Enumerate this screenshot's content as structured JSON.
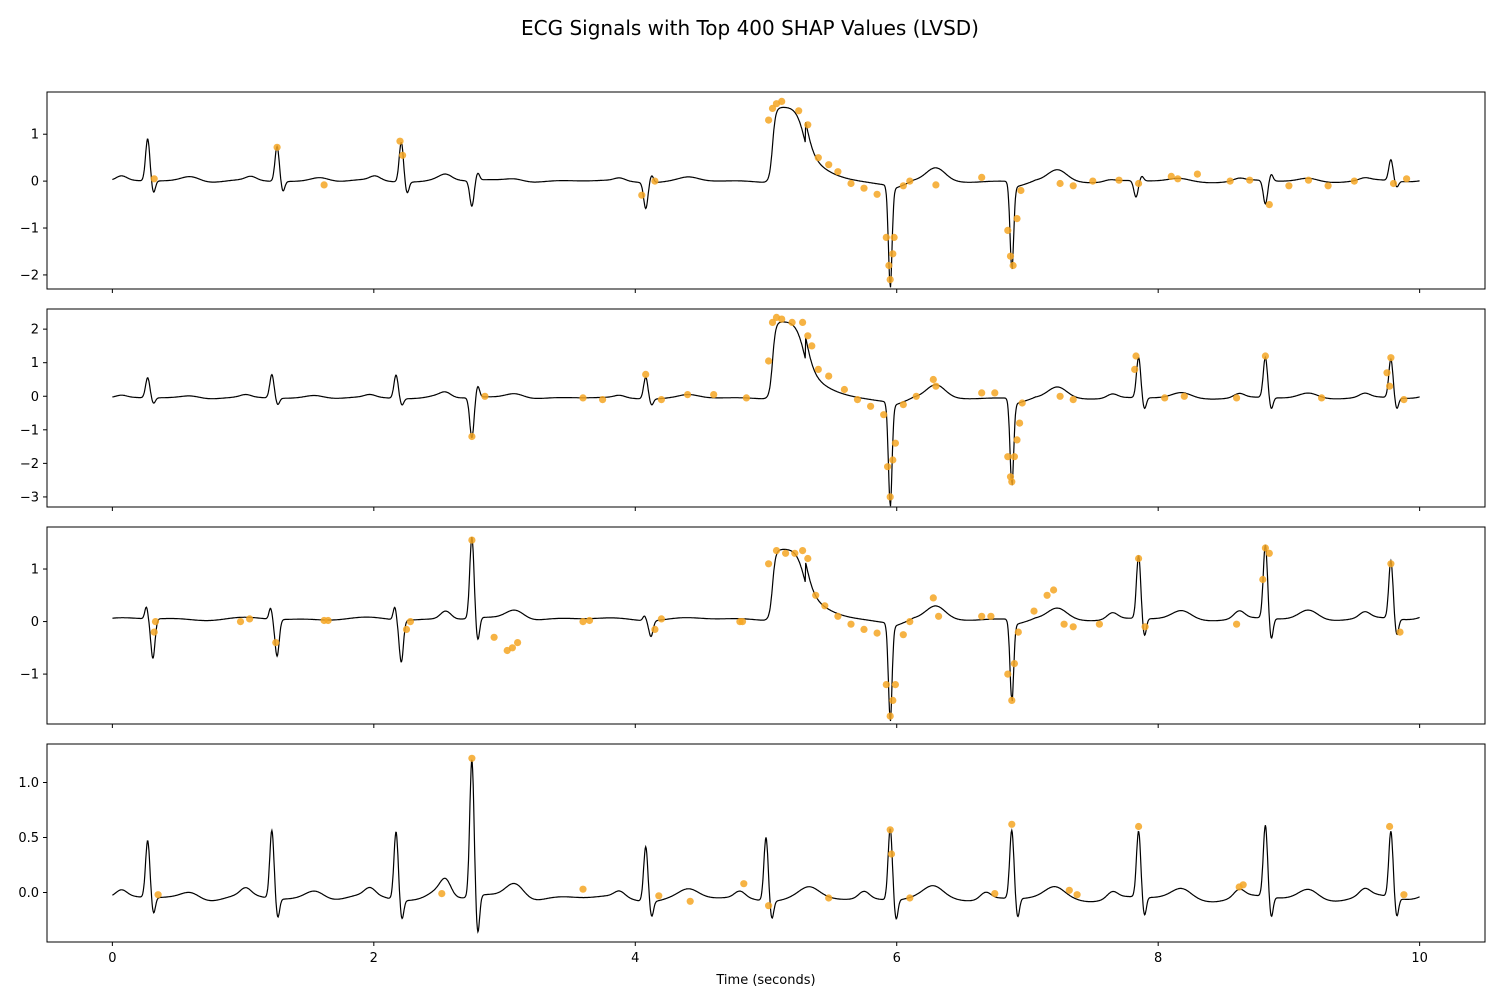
{
  "title": "ECG Signals with Top 400 SHAP Values (LVSD)",
  "chart_data": {
    "type": "line",
    "xlabel": "Time (seconds)",
    "xlim": [
      -0.5,
      10.5
    ],
    "xticks": [
      0,
      2,
      4,
      6,
      8,
      10
    ],
    "colors": {
      "signal": "#000000",
      "shap_points": "#f5a623"
    },
    "beat_shapes": {
      "narrow": {
        "q": -0.18,
        "r": 1.0,
        "s": -0.45,
        "t": 0.18
      },
      "wide": "broad monophasic complex with slow decay, deep negative spike and sharp negative rebound"
    },
    "panels": [
      {
        "ylim": [
          -2.3,
          1.9
        ],
        "yticks": [
          -2,
          -1,
          0,
          1
        ],
        "baseline": 0.0,
        "beats": [
          {
            "t": 0.27,
            "amp": 0.9,
            "kind": "narrow"
          },
          {
            "t": 1.26,
            "amp": 0.75,
            "kind": "narrow"
          },
          {
            "t": 2.21,
            "amp": 0.85,
            "kind": "narrow"
          },
          {
            "t": 2.75,
            "amp": -0.55,
            "kind": "narrow"
          },
          {
            "t": 4.08,
            "amp": -0.55,
            "kind": "narrow"
          },
          {
            "t": 5.05,
            "amp": 1.6,
            "kind": "wide"
          },
          {
            "t": 5.95,
            "amp": -2.1,
            "kind": "spike"
          },
          {
            "t": 6.88,
            "amp": -1.8,
            "kind": "spike"
          },
          {
            "t": 7.83,
            "amp": -0.35,
            "kind": "narrow"
          },
          {
            "t": 8.82,
            "amp": -0.5,
            "kind": "narrow"
          },
          {
            "t": 9.78,
            "amp": 0.45,
            "kind": "narrow"
          }
        ],
        "shap_points": [
          [
            0.32,
            0.05
          ],
          [
            1.26,
            0.72
          ],
          [
            1.62,
            -0.08
          ],
          [
            2.2,
            0.85
          ],
          [
            2.22,
            0.55
          ],
          [
            4.05,
            -0.3
          ],
          [
            4.15,
            0.0
          ],
          [
            5.02,
            1.3
          ],
          [
            5.05,
            1.55
          ],
          [
            5.08,
            1.65
          ],
          [
            5.12,
            1.7
          ],
          [
            5.25,
            1.5
          ],
          [
            5.32,
            1.2
          ],
          [
            5.4,
            0.5
          ],
          [
            5.48,
            0.35
          ],
          [
            5.55,
            0.2
          ],
          [
            5.65,
            -0.05
          ],
          [
            5.75,
            -0.15
          ],
          [
            5.85,
            -0.28
          ],
          [
            5.92,
            -1.2
          ],
          [
            5.94,
            -1.8
          ],
          [
            5.95,
            -2.1
          ],
          [
            5.97,
            -1.55
          ],
          [
            5.98,
            -1.2
          ],
          [
            6.05,
            -0.1
          ],
          [
            6.1,
            0.0
          ],
          [
            6.3,
            -0.08
          ],
          [
            6.65,
            0.08
          ],
          [
            6.85,
            -1.05
          ],
          [
            6.87,
            -1.6
          ],
          [
            6.89,
            -1.8
          ],
          [
            6.92,
            -0.8
          ],
          [
            6.95,
            -0.2
          ],
          [
            7.25,
            -0.05
          ],
          [
            7.35,
            -0.1
          ],
          [
            7.5,
            0.0
          ],
          [
            7.7,
            0.02
          ],
          [
            7.85,
            -0.05
          ],
          [
            8.1,
            0.1
          ],
          [
            8.15,
            0.05
          ],
          [
            8.3,
            0.15
          ],
          [
            8.55,
            0.0
          ],
          [
            8.7,
            0.02
          ],
          [
            8.85,
            -0.5
          ],
          [
            9.0,
            -0.1
          ],
          [
            9.15,
            0.02
          ],
          [
            9.3,
            -0.1
          ],
          [
            9.5,
            0.0
          ],
          [
            9.8,
            -0.05
          ],
          [
            9.9,
            0.05
          ]
        ]
      },
      {
        "ylim": [
          -3.3,
          2.6
        ],
        "yticks": [
          -3,
          -2,
          -1,
          0,
          1,
          2
        ],
        "baseline": -0.05,
        "beats": [
          {
            "t": 0.27,
            "amp": 0.6,
            "kind": "narrow"
          },
          {
            "t": 1.22,
            "amp": 0.7,
            "kind": "narrow"
          },
          {
            "t": 2.17,
            "amp": 0.7,
            "kind": "narrow"
          },
          {
            "t": 2.75,
            "amp": -1.2,
            "kind": "narrow"
          },
          {
            "t": 4.08,
            "amp": 0.65,
            "kind": "narrow"
          },
          {
            "t": 5.05,
            "amp": 2.3,
            "kind": "wide"
          },
          {
            "t": 5.95,
            "amp": -3.0,
            "kind": "spike"
          },
          {
            "t": 6.88,
            "amp": -2.5,
            "kind": "spike"
          },
          {
            "t": 7.85,
            "amp": 1.2,
            "kind": "narrow"
          },
          {
            "t": 8.82,
            "amp": 1.2,
            "kind": "narrow"
          },
          {
            "t": 9.78,
            "amp": 1.15,
            "kind": "narrow"
          }
        ],
        "shap_points": [
          [
            2.75,
            -1.2
          ],
          [
            2.85,
            0.0
          ],
          [
            3.6,
            -0.05
          ],
          [
            3.75,
            -0.1
          ],
          [
            4.08,
            0.65
          ],
          [
            4.2,
            -0.1
          ],
          [
            4.4,
            0.05
          ],
          [
            4.6,
            0.05
          ],
          [
            4.85,
            -0.05
          ],
          [
            5.02,
            1.05
          ],
          [
            5.05,
            2.2
          ],
          [
            5.08,
            2.35
          ],
          [
            5.12,
            2.3
          ],
          [
            5.2,
            2.2
          ],
          [
            5.28,
            2.2
          ],
          [
            5.32,
            1.8
          ],
          [
            5.35,
            1.5
          ],
          [
            5.4,
            0.8
          ],
          [
            5.48,
            0.6
          ],
          [
            5.6,
            0.2
          ],
          [
            5.7,
            -0.1
          ],
          [
            5.8,
            -0.3
          ],
          [
            5.9,
            -0.55
          ],
          [
            5.93,
            -2.1
          ],
          [
            5.95,
            -3.0
          ],
          [
            5.97,
            -1.9
          ],
          [
            5.99,
            -1.4
          ],
          [
            6.05,
            -0.25
          ],
          [
            6.15,
            0.0
          ],
          [
            6.28,
            0.5
          ],
          [
            6.3,
            0.3
          ],
          [
            6.65,
            0.1
          ],
          [
            6.75,
            0.1
          ],
          [
            6.85,
            -1.8
          ],
          [
            6.87,
            -2.4
          ],
          [
            6.88,
            -2.55
          ],
          [
            6.9,
            -1.8
          ],
          [
            6.92,
            -1.3
          ],
          [
            6.94,
            -0.8
          ],
          [
            6.96,
            -0.2
          ],
          [
            7.25,
            0.0
          ],
          [
            7.35,
            -0.1
          ],
          [
            7.83,
            1.2
          ],
          [
            7.82,
            0.8
          ],
          [
            8.05,
            -0.05
          ],
          [
            8.2,
            0.0
          ],
          [
            8.6,
            -0.05
          ],
          [
            8.82,
            1.2
          ],
          [
            9.25,
            -0.05
          ],
          [
            9.75,
            0.7
          ],
          [
            9.77,
            0.3
          ],
          [
            9.78,
            1.15
          ],
          [
            9.88,
            -0.1
          ]
        ]
      },
      {
        "ylim": [
          -1.95,
          1.8
        ],
        "yticks": [
          -1,
          0,
          1
        ],
        "baseline": 0.05,
        "beats": [
          {
            "t": 0.27,
            "amp": -0.75,
            "kind": "narrow-neg"
          },
          {
            "t": 1.22,
            "amp": -0.7,
            "kind": "narrow-neg"
          },
          {
            "t": 2.17,
            "amp": -0.8,
            "kind": "narrow-neg"
          },
          {
            "t": 2.75,
            "amp": 1.55,
            "kind": "narrow"
          },
          {
            "t": 4.08,
            "amp": -0.3,
            "kind": "narrow-neg"
          },
          {
            "t": 5.05,
            "amp": 1.35,
            "kind": "wide"
          },
          {
            "t": 5.95,
            "amp": -1.8,
            "kind": "spike"
          },
          {
            "t": 6.88,
            "amp": -1.5,
            "kind": "spike"
          },
          {
            "t": 7.85,
            "amp": 1.2,
            "kind": "narrow"
          },
          {
            "t": 8.82,
            "amp": 1.4,
            "kind": "narrow"
          },
          {
            "t": 9.78,
            "amp": 1.1,
            "kind": "narrow"
          }
        ],
        "shap_points": [
          [
            0.32,
            -0.2
          ],
          [
            0.33,
            0.0
          ],
          [
            0.98,
            0.0
          ],
          [
            1.05,
            0.05
          ],
          [
            1.25,
            -0.4
          ],
          [
            1.62,
            0.02
          ],
          [
            1.65,
            0.02
          ],
          [
            2.25,
            -0.15
          ],
          [
            2.28,
            0.0
          ],
          [
            2.75,
            1.55
          ],
          [
            2.92,
            -0.3
          ],
          [
            3.02,
            -0.55
          ],
          [
            3.06,
            -0.5
          ],
          [
            3.1,
            -0.4
          ],
          [
            3.6,
            0.0
          ],
          [
            3.65,
            0.02
          ],
          [
            4.15,
            -0.15
          ],
          [
            4.2,
            0.05
          ],
          [
            4.8,
            0.0
          ],
          [
            4.82,
            0.0
          ],
          [
            5.02,
            1.1
          ],
          [
            5.08,
            1.35
          ],
          [
            5.15,
            1.3
          ],
          [
            5.22,
            1.3
          ],
          [
            5.28,
            1.35
          ],
          [
            5.32,
            1.2
          ],
          [
            5.38,
            0.5
          ],
          [
            5.45,
            0.3
          ],
          [
            5.55,
            0.1
          ],
          [
            5.65,
            -0.05
          ],
          [
            5.75,
            -0.15
          ],
          [
            5.85,
            -0.22
          ],
          [
            5.92,
            -1.2
          ],
          [
            5.95,
            -1.8
          ],
          [
            5.97,
            -1.5
          ],
          [
            5.99,
            -1.2
          ],
          [
            6.05,
            -0.25
          ],
          [
            6.1,
            0.0
          ],
          [
            6.28,
            0.45
          ],
          [
            6.32,
            0.1
          ],
          [
            6.65,
            0.1
          ],
          [
            6.72,
            0.1
          ],
          [
            6.85,
            -1.0
          ],
          [
            6.88,
            -1.5
          ],
          [
            6.9,
            -0.8
          ],
          [
            6.93,
            -0.2
          ],
          [
            7.05,
            0.2
          ],
          [
            7.15,
            0.5
          ],
          [
            7.2,
            0.6
          ],
          [
            7.28,
            -0.05
          ],
          [
            7.35,
            -0.1
          ],
          [
            7.55,
            -0.05
          ],
          [
            7.85,
            1.2
          ],
          [
            7.9,
            -0.1
          ],
          [
            8.6,
            -0.05
          ],
          [
            8.8,
            0.8
          ],
          [
            8.82,
            1.4
          ],
          [
            8.85,
            1.3
          ],
          [
            9.78,
            1.1
          ],
          [
            9.85,
            -0.2
          ]
        ]
      },
      {
        "ylim": [
          -0.45,
          1.35
        ],
        "yticks": [
          0.0,
          0.5,
          1.0
        ],
        "ytick_labels": [
          "0.0",
          "0.5",
          "1.0"
        ],
        "baseline": -0.05,
        "beats": [
          {
            "t": 0.27,
            "amp": 0.52,
            "kind": "narrow"
          },
          {
            "t": 1.22,
            "amp": 0.62,
            "kind": "narrow"
          },
          {
            "t": 2.17,
            "amp": 0.62,
            "kind": "narrow"
          },
          {
            "t": 2.75,
            "amp": 1.25,
            "kind": "narrow"
          },
          {
            "t": 4.08,
            "amp": 0.5,
            "kind": "narrow"
          },
          {
            "t": 5.0,
            "amp": 0.58,
            "kind": "narrow"
          },
          {
            "t": 5.95,
            "amp": 0.65,
            "kind": "narrow"
          },
          {
            "t": 6.88,
            "amp": 0.62,
            "kind": "narrow"
          },
          {
            "t": 7.85,
            "amp": 0.6,
            "kind": "narrow"
          },
          {
            "t": 8.82,
            "amp": 0.65,
            "kind": "narrow"
          },
          {
            "t": 9.78,
            "amp": 0.6,
            "kind": "narrow"
          }
        ],
        "shap_points": [
          [
            0.35,
            -0.02
          ],
          [
            2.52,
            -0.01
          ],
          [
            2.75,
            1.22
          ],
          [
            3.6,
            0.03
          ],
          [
            4.18,
            -0.03
          ],
          [
            4.42,
            -0.08
          ],
          [
            4.83,
            0.08
          ],
          [
            5.02,
            -0.12
          ],
          [
            5.48,
            -0.05
          ],
          [
            5.95,
            0.57
          ],
          [
            5.96,
            0.35
          ],
          [
            6.1,
            -0.05
          ],
          [
            6.75,
            -0.01
          ],
          [
            6.88,
            0.62
          ],
          [
            7.32,
            0.02
          ],
          [
            7.38,
            -0.02
          ],
          [
            7.85,
            0.6
          ],
          [
            8.62,
            0.05
          ],
          [
            8.65,
            0.07
          ],
          [
            9.77,
            0.6
          ],
          [
            9.88,
            -0.02
          ]
        ]
      }
    ]
  }
}
